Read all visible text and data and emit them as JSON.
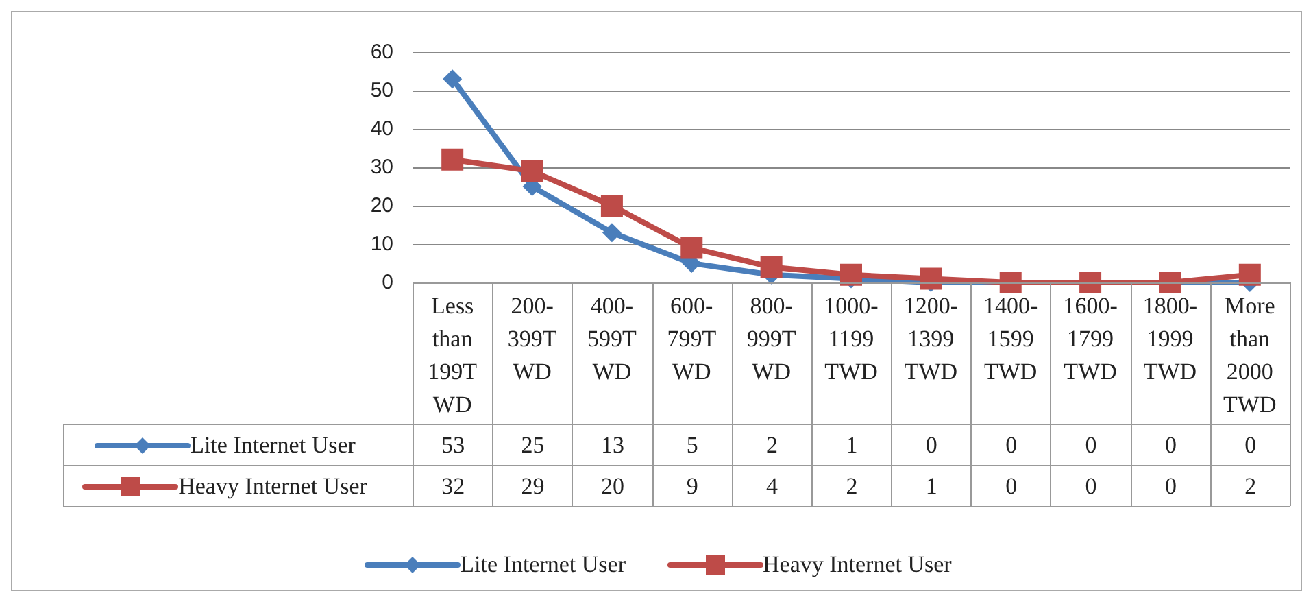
{
  "chart_data": {
    "type": "line",
    "categories": [
      "Less than 199TWD",
      "200-399TWD",
      "400-599TWD",
      "600-799TWD",
      "800-999TWD",
      "1000-1199TWD",
      "1200-1399TWD",
      "1400-1599TWD",
      "1600-1799TWD",
      "1800-1999TWD",
      "More than 2000 TWD"
    ],
    "series": [
      {
        "name": "Lite Internet User",
        "color": "#4a7ebb",
        "marker": "diamond",
        "values": [
          53,
          25,
          13,
          5,
          2,
          1,
          0,
          0,
          0,
          0,
          0
        ]
      },
      {
        "name": "Heavy Internet User",
        "color": "#be4b48",
        "marker": "square",
        "values": [
          32,
          29,
          20,
          9,
          4,
          2,
          1,
          0,
          0,
          0,
          2
        ]
      }
    ],
    "ylim": [
      0,
      60
    ],
    "yticks": [
      0,
      10,
      20,
      30,
      40,
      50,
      60
    ],
    "grid": "y",
    "legend": "bottom",
    "data_labels": true
  }
}
